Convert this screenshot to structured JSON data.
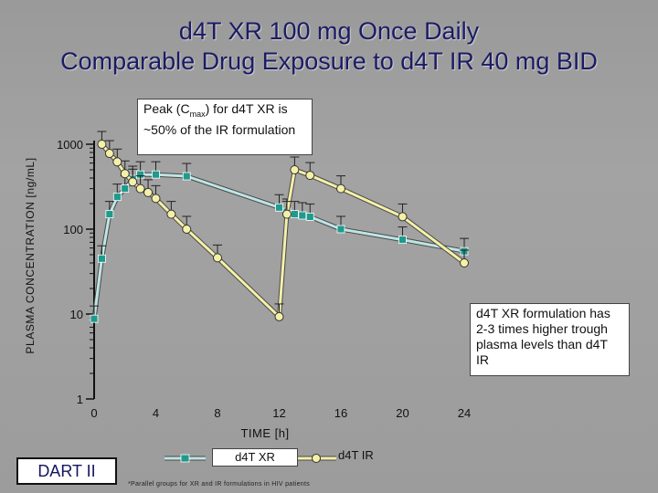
{
  "slide": {
    "title_line1": "d4T XR 100 mg Once Daily",
    "title_line2": "Comparable Drug Exposure to d4T IR 40 mg BID",
    "peak_callout": "Peak (Cmax) for d4T XR is ~50% of the IR formulation",
    "trough_callout": "d4T XR formulation has 2-3 times higher trough plasma levels than d4T IR",
    "brand": "DART II",
    "footnote": "*Parallel groups for XR and IR formulations in HIV patients",
    "legend_xr": "d4T XR",
    "legend_ir": "d4T IR"
  },
  "chart_data": {
    "type": "line",
    "title": "d4T XR 100 mg Once Daily Comparable Drug Exposure to d4T IR 40 mg BID",
    "xlabel": "TIME [h]",
    "ylabel": "PLASMA CONCENTRATION [ng/mL]",
    "x_ticks": [
      0,
      4,
      8,
      12,
      16,
      20,
      24
    ],
    "x_tick_labels": [
      "0",
      "4",
      "8",
      "12",
      "16",
      "20",
      "24"
    ],
    "y_ticks": [
      1,
      10,
      100,
      1000
    ],
    "y_tick_labels": [
      "1",
      "10",
      "100",
      "1000"
    ],
    "ylim": [
      1,
      1000
    ],
    "xlim": [
      0,
      24
    ],
    "y_scale": "log",
    "error_bars": true,
    "series": [
      {
        "name": "d4T XR",
        "color": "#bfe4e4",
        "marker": "square",
        "marker_color": "#1f9a8c",
        "x": [
          0,
          0.5,
          1,
          1.5,
          2,
          2.5,
          3,
          4,
          6,
          12,
          12.5,
          13,
          13.5,
          14,
          16,
          20,
          24
        ],
        "y": [
          8.8,
          45,
          150,
          240,
          300,
          390,
          440,
          440,
          420,
          180,
          160,
          150,
          145,
          140,
          100,
          75,
          55
        ]
      },
      {
        "name": "d4T IR",
        "color": "#f5f0a8",
        "marker": "circle",
        "marker_color": "#f5f0a8",
        "x": [
          0.5,
          1,
          1.5,
          2,
          2.5,
          3,
          3.5,
          4,
          5,
          6,
          8,
          12,
          12.5,
          13,
          14,
          16,
          20,
          24
        ],
        "y": [
          1000,
          780,
          620,
          450,
          360,
          300,
          270,
          230,
          150,
          100,
          46,
          9.3,
          150,
          500,
          430,
          300,
          140,
          40
        ]
      }
    ]
  }
}
